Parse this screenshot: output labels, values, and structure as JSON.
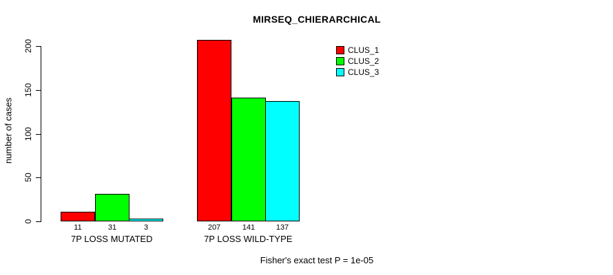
{
  "chart_data": {
    "type": "bar",
    "title": "MIRSEQ_CHIERARCHICAL",
    "ylabel": "number of cases",
    "xlabel": "",
    "caption": "Fisher's exact test P = 1e-05",
    "categories": [
      "7P LOSS MUTATED",
      "7P LOSS WILD-TYPE"
    ],
    "series": [
      {
        "name": "CLUS_1",
        "color": "#ff0000",
        "values": [
          11,
          207
        ]
      },
      {
        "name": "CLUS_2",
        "color": "#00ff00",
        "values": [
          31,
          141
        ]
      },
      {
        "name": "CLUS_3",
        "color": "#00ffff",
        "values": [
          3,
          137
        ]
      }
    ],
    "bar_value_labels": [
      [
        "11",
        "31",
        "3"
      ],
      [
        "207",
        "141",
        "137"
      ]
    ],
    "yticks": [
      0,
      50,
      100,
      150,
      200
    ],
    "ylim": [
      0,
      215
    ],
    "grid": false,
    "legend_position": "top-right",
    "legend_entries": [
      "CLUS_1",
      "CLUS_2",
      "CLUS_3"
    ],
    "bar_border_color": "#000000",
    "background_color": "#ffffff"
  }
}
